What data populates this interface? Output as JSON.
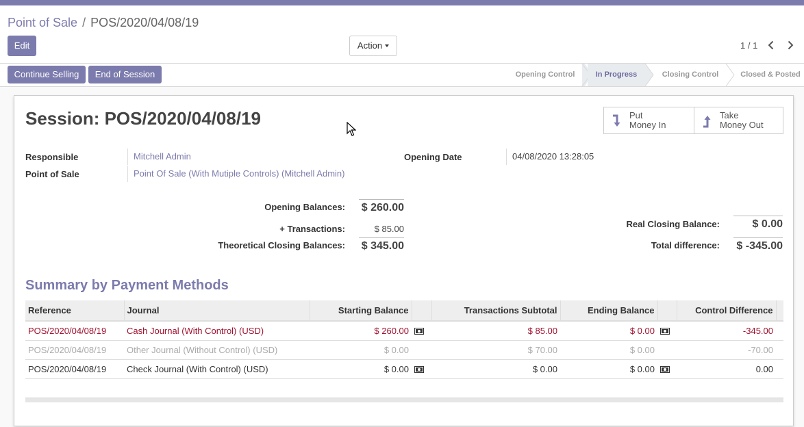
{
  "breadcrumb": {
    "parent": "Point of Sale",
    "separator": "/",
    "current": "POS/2020/04/08/19"
  },
  "toolbar": {
    "edit_label": "Edit",
    "action_label": "Action"
  },
  "pager": {
    "value": "1 / 1"
  },
  "statusbar": {
    "continue_label": "Continue Selling",
    "end_label": "End of Session",
    "stages": [
      "Opening Control",
      "In Progress",
      "Closing Control",
      "Closed & Posted"
    ],
    "active_stage": "In Progress"
  },
  "session": {
    "title": "Session: POS/2020/04/08/19",
    "put_money": {
      "line1": "Put",
      "line2": "Money In"
    },
    "take_money": {
      "line1": "Take",
      "line2": "Money Out"
    },
    "responsible_label": "Responsible",
    "responsible_value": "Mitchell Admin",
    "pos_label": "Point of Sale",
    "pos_value": "Point Of Sale (With Mutiple Controls) (Mitchell Admin)",
    "opening_date_label": "Opening Date",
    "opening_date_value": "04/08/2020 13:28:05"
  },
  "balances": {
    "opening_label": "Opening Balances:",
    "opening_value": "$ 260.00",
    "transactions_label": "+ Transactions:",
    "transactions_value": "$ 85.00",
    "theoretical_label": "Theoretical Closing Balances:",
    "theoretical_value": "$ 345.00",
    "real_closing_label": "Real Closing Balance:",
    "real_closing_value": "$ 0.00",
    "total_diff_label": "Total difference:",
    "total_diff_value": "$ -345.00"
  },
  "summary": {
    "title": "Summary by Payment Methods",
    "columns": [
      "Reference",
      "Journal",
      "Starting Balance",
      "Transactions Subtotal",
      "Ending Balance",
      "Control Difference"
    ],
    "rows": [
      {
        "reference": "POS/2020/04/08/19",
        "journal": "Cash Journal (With Control) (USD)",
        "starting": "$ 260.00",
        "transactions": "$ 85.00",
        "ending": "$ 0.00",
        "difference": "-345.00",
        "style": "red",
        "has_control": true
      },
      {
        "reference": "POS/2020/04/08/19",
        "journal": "Other Journal (Without Control) (USD)",
        "starting": "$ 0.00",
        "transactions": "$ 70.00",
        "ending": "$ 0.00",
        "difference": "-70.00",
        "style": "grey",
        "has_control": false
      },
      {
        "reference": "POS/2020/04/08/19",
        "journal": "Check Journal (With Control) (USD)",
        "starting": "$ 0.00",
        "transactions": "$ 0.00",
        "ending": "$ 0.00",
        "difference": "0.00",
        "style": "normal",
        "has_control": true
      }
    ]
  },
  "colors": {
    "brand": "#7c7bad",
    "negative": "#a0112e",
    "muted": "#aaaaaa"
  },
  "icons": [
    "chevron-left-icon",
    "chevron-right-icon",
    "money-in-icon",
    "money-out-icon",
    "cash-icon",
    "cursor-icon"
  ]
}
